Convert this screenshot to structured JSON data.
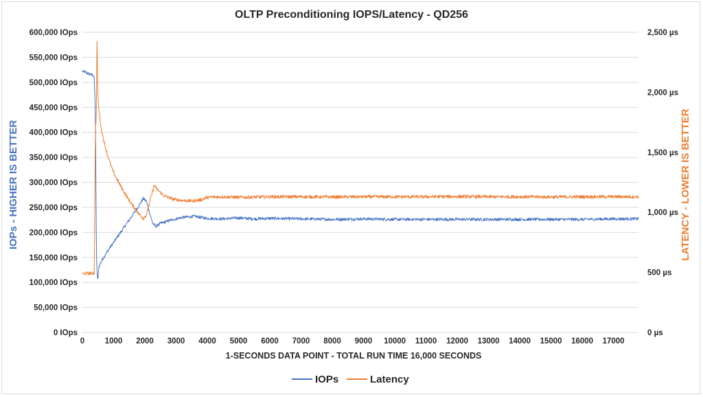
{
  "chart_data": {
    "type": "line",
    "title": "OLTP Preconditioning IOPS/Latency - QD256",
    "xlabel": "1-SECONDS DATA POINT - TOTAL RUN TIME 16,000 SECONDS",
    "ylabel_left": "IOPs - HIGHER IS BETTER",
    "ylabel_right": "LATENCY - LOWER IS BETTER",
    "xlim": [
      0,
      17800
    ],
    "ylim_left": [
      0,
      600000
    ],
    "ylim_right": [
      0,
      2500
    ],
    "x_ticks": [
      0,
      1000,
      2000,
      3000,
      4000,
      5000,
      6000,
      7000,
      8000,
      9000,
      10000,
      11000,
      12000,
      13000,
      14000,
      15000,
      16000,
      17000
    ],
    "x_tick_labels": [
      "0",
      "1000",
      "2000",
      "3000",
      "4000",
      "5000",
      "6000",
      "7000",
      "8000",
      "9000",
      "10000",
      "11000",
      "12000",
      "13000",
      "14000",
      "15000",
      "16000",
      "17000"
    ],
    "y_left_ticks": [
      0,
      50000,
      100000,
      150000,
      200000,
      250000,
      300000,
      350000,
      400000,
      450000,
      500000,
      550000,
      600000
    ],
    "y_left_tick_labels": [
      "0 IOps",
      "50,000 IOps",
      "100,000 IOps",
      "150,000 IOps",
      "200,000 IOps",
      "250,000 IOps",
      "300,000 IOps",
      "350,000 IOps",
      "400,000 IOps",
      "450,000 IOps",
      "500,000 IOps",
      "550,000 IOps",
      "600,000 IOps"
    ],
    "y_right_ticks": [
      0,
      500,
      1000,
      1500,
      2000,
      2500
    ],
    "y_right_tick_labels": [
      "0 µs",
      "500 µs",
      "1,000 µs",
      "1,500 µs",
      "2,000 µs",
      "2,500 µs"
    ],
    "grid": true,
    "legend_position": "bottom",
    "series": [
      {
        "name": "IOPs",
        "axis": "left",
        "color": "#4472c4",
        "x": [
          0,
          100,
          200,
          300,
          380,
          420,
          450,
          480,
          500,
          520,
          600,
          800,
          1000,
          1200,
          1400,
          1600,
          1800,
          1950,
          2050,
          2150,
          2250,
          2350,
          2500,
          2800,
          3200,
          3600,
          3800,
          4000,
          4500,
          5000,
          5500,
          6000,
          7000,
          8000,
          9000,
          10000,
          11000,
          12000,
          13000,
          14000,
          15000,
          16000,
          17000,
          17800
        ],
        "values": [
          522000,
          520000,
          517000,
          515000,
          512000,
          430000,
          145000,
          110000,
          105000,
          130000,
          142000,
          162000,
          180000,
          198000,
          216000,
          234000,
          252000,
          268000,
          262000,
          240000,
          218000,
          212000,
          218000,
          224000,
          230000,
          232000,
          230000,
          228000,
          227000,
          229000,
          227000,
          228000,
          227000,
          226000,
          227000,
          226000,
          226000,
          226000,
          226000,
          226000,
          226000,
          226000,
          227000,
          227000
        ],
        "noise": 3000
      },
      {
        "name": "Latency",
        "axis": "right",
        "color": "#ed7d31",
        "x": [
          0,
          100,
          200,
          300,
          380,
          420,
          440,
          460,
          470,
          480,
          490,
          500,
          530,
          600,
          700,
          800,
          900,
          1000,
          1200,
          1400,
          1600,
          1800,
          1950,
          2050,
          2150,
          2250,
          2300,
          2400,
          2600,
          2900,
          3200,
          3500,
          3800,
          4000,
          4500,
          5000,
          6000,
          7000,
          8000,
          9000,
          10000,
          11000,
          12000,
          13000,
          14000,
          15000,
          16000,
          17000,
          17800
        ],
        "values": [
          490,
          491,
          492,
          493,
          495,
          1750,
          1720,
          2250,
          2500,
          2200,
          2000,
          1950,
          1850,
          1700,
          1580,
          1480,
          1400,
          1330,
          1230,
          1140,
          1060,
          990,
          950,
          980,
          1080,
          1180,
          1225,
          1190,
          1140,
          1110,
          1100,
          1095,
          1105,
          1125,
          1130,
          1125,
          1130,
          1130,
          1128,
          1130,
          1130,
          1130,
          1132,
          1130,
          1130,
          1128,
          1130,
          1130,
          1130
        ],
        "noise": 14
      }
    ]
  },
  "legend": {
    "iops_label": "IOPs",
    "latency_label": "Latency",
    "iops_color": "#4472c4",
    "latency_color": "#ed7d31"
  }
}
